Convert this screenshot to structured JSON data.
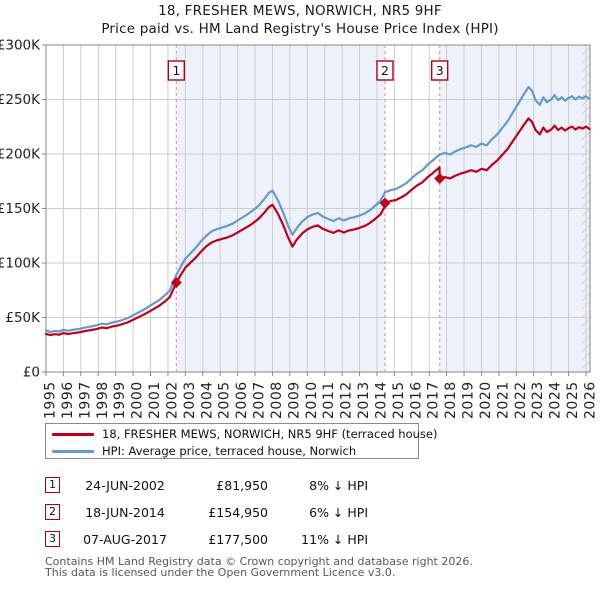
{
  "title": {
    "line1": "18, FRESHER MEWS, NORWICH, NR5 9HF",
    "line2": "Price paid vs. HM Land Registry's House Price Index (HPI)"
  },
  "colors": {
    "property_line": "#c00018",
    "hpi_line": "#6699cc",
    "sale_dash": "#f09898",
    "shade": "#edf2fa",
    "grid": "#cccccc",
    "plot_border": "#999999",
    "tick": "#888888",
    "axis_text": "#222222",
    "marker": "#c00018",
    "numbox_border": "#b00010",
    "hatch": "#b9bfca"
  },
  "chart_data": {
    "type": "line",
    "title": "Price paid vs. HM Land Registry's House Price Index (HPI)",
    "x_ticks": [
      1995,
      1996,
      1997,
      1998,
      1999,
      2000,
      2001,
      2002,
      2003,
      2004,
      2005,
      2006,
      2007,
      2008,
      2009,
      2010,
      2011,
      2012,
      2013,
      2014,
      2015,
      2016,
      2017,
      2018,
      2019,
      2020,
      2021,
      2022,
      2023,
      2024,
      2025,
      2026
    ],
    "y_ticks": [
      0,
      50,
      100,
      150,
      200,
      250,
      300
    ],
    "y_tick_labels": [
      "£0",
      "£50K",
      "£100K",
      "£150K",
      "£200K",
      "£250K",
      "£300K"
    ],
    "x_range": [
      1995,
      2026.23
    ],
    "y_range_k": [
      0,
      300
    ],
    "shaded_periods": [
      [
        2002.48,
        2014.46
      ],
      [
        2017.6,
        2026.23
      ]
    ],
    "future_hatch_start": 2025.77,
    "sales_markers": [
      {
        "label": "1",
        "year": 2002.48,
        "value_k": 81.95
      },
      {
        "label": "2",
        "year": 2014.46,
        "value_k": 154.95
      },
      {
        "label": "3",
        "year": 2017.6,
        "value_k": 177.5
      }
    ],
    "series": [
      {
        "name": "HPI: Average price, terraced house, Norwich",
        "color_key": "hpi_line",
        "points": [
          [
            1995.0,
            38
          ],
          [
            1995.25,
            36.8
          ],
          [
            1995.5,
            37.6
          ],
          [
            1995.75,
            37.2
          ],
          [
            1996.0,
            38.8
          ],
          [
            1996.25,
            37.8
          ],
          [
            1996.5,
            38.6
          ],
          [
            1996.75,
            39.2
          ],
          [
            1997.0,
            39.8
          ],
          [
            1997.3,
            41
          ],
          [
            1997.6,
            41.8
          ],
          [
            1997.9,
            42.8
          ],
          [
            1998.2,
            44.3
          ],
          [
            1998.5,
            43.8
          ],
          [
            1998.8,
            45.3
          ],
          [
            1999.1,
            46.3
          ],
          [
            1999.4,
            47.8
          ],
          [
            1999.7,
            49.5
          ],
          [
            2000.0,
            52
          ],
          [
            2000.3,
            54.5
          ],
          [
            2000.6,
            57
          ],
          [
            2000.9,
            60
          ],
          [
            2001.2,
            63
          ],
          [
            2001.5,
            66
          ],
          [
            2001.8,
            70
          ],
          [
            2002.1,
            74.5
          ],
          [
            2002.48,
            89
          ],
          [
            2002.75,
            97
          ],
          [
            2003.0,
            104
          ],
          [
            2003.3,
            109
          ],
          [
            2003.6,
            114
          ],
          [
            2003.9,
            120
          ],
          [
            2004.2,
            125
          ],
          [
            2004.5,
            129
          ],
          [
            2004.8,
            131
          ],
          [
            2005.1,
            132.5
          ],
          [
            2005.4,
            134
          ],
          [
            2005.7,
            136
          ],
          [
            2006.0,
            139
          ],
          [
            2006.3,
            142
          ],
          [
            2006.6,
            145
          ],
          [
            2006.9,
            148.5
          ],
          [
            2007.2,
            152.5
          ],
          [
            2007.5,
            158
          ],
          [
            2007.8,
            164.5
          ],
          [
            2008.0,
            166.5
          ],
          [
            2008.3,
            158
          ],
          [
            2008.6,
            147
          ],
          [
            2008.9,
            134
          ],
          [
            2009.15,
            126
          ],
          [
            2009.4,
            132
          ],
          [
            2009.7,
            138
          ],
          [
            2010.0,
            142
          ],
          [
            2010.3,
            144.5
          ],
          [
            2010.6,
            146
          ],
          [
            2010.9,
            142.5
          ],
          [
            2011.2,
            140.5
          ],
          [
            2011.5,
            138.5
          ],
          [
            2011.8,
            141
          ],
          [
            2012.1,
            139
          ],
          [
            2012.4,
            141
          ],
          [
            2012.7,
            142
          ],
          [
            2013.0,
            143.5
          ],
          [
            2013.3,
            145.5
          ],
          [
            2013.6,
            148.5
          ],
          [
            2013.9,
            152.5
          ],
          [
            2014.2,
            157
          ],
          [
            2014.46,
            164.8
          ],
          [
            2014.8,
            167
          ],
          [
            2015.1,
            168
          ],
          [
            2015.4,
            170.5
          ],
          [
            2015.7,
            173.5
          ],
          [
            2016.0,
            178
          ],
          [
            2016.3,
            182
          ],
          [
            2016.6,
            185
          ],
          [
            2016.9,
            190
          ],
          [
            2017.2,
            194
          ],
          [
            2017.6,
            199.5
          ],
          [
            2017.9,
            201
          ],
          [
            2018.2,
            199.5
          ],
          [
            2018.5,
            202.5
          ],
          [
            2018.8,
            204.5
          ],
          [
            2019.1,
            206
          ],
          [
            2019.4,
            208
          ],
          [
            2019.7,
            206.5
          ],
          [
            2020.0,
            209.5
          ],
          [
            2020.3,
            208
          ],
          [
            2020.6,
            213.5
          ],
          [
            2020.9,
            218
          ],
          [
            2021.2,
            224
          ],
          [
            2021.5,
            230
          ],
          [
            2021.8,
            238
          ],
          [
            2022.1,
            246
          ],
          [
            2022.4,
            254
          ],
          [
            2022.7,
            261.5
          ],
          [
            2022.9,
            258
          ],
          [
            2023.1,
            249.5
          ],
          [
            2023.35,
            245
          ],
          [
            2023.55,
            252
          ],
          [
            2023.75,
            247.5
          ],
          [
            2024.0,
            250
          ],
          [
            2024.2,
            254
          ],
          [
            2024.4,
            249.5
          ],
          [
            2024.6,
            252
          ],
          [
            2024.8,
            249
          ],
          [
            2025.0,
            251.5
          ],
          [
            2025.2,
            253
          ],
          [
            2025.4,
            250
          ],
          [
            2025.6,
            252.5
          ],
          [
            2025.8,
            251
          ],
          [
            2026.0,
            253
          ],
          [
            2026.2,
            250.5
          ]
        ]
      },
      {
        "name": "18, FRESHER MEWS, NORWICH, NR5 9HF (terraced house)",
        "color_key": "property_line",
        "points": [
          [
            1995.0,
            35
          ],
          [
            1995.25,
            33.9
          ],
          [
            1995.5,
            34.7
          ],
          [
            1995.75,
            34.2
          ],
          [
            1996.0,
            35.8
          ],
          [
            1996.25,
            34.8
          ],
          [
            1996.5,
            35.5
          ],
          [
            1996.75,
            36.1
          ],
          [
            1997.0,
            36.7
          ],
          [
            1997.3,
            37.8
          ],
          [
            1997.6,
            38.5
          ],
          [
            1997.9,
            39.4
          ],
          [
            1998.2,
            40.8
          ],
          [
            1998.5,
            40.3
          ],
          [
            1998.8,
            41.7
          ],
          [
            1999.1,
            42.6
          ],
          [
            1999.4,
            44
          ],
          [
            1999.7,
            45.6
          ],
          [
            2000.0,
            47.9
          ],
          [
            2000.3,
            50.2
          ],
          [
            2000.6,
            52.5
          ],
          [
            2000.9,
            55.2
          ],
          [
            2001.2,
            58
          ],
          [
            2001.5,
            60.8
          ],
          [
            2001.8,
            64.4
          ],
          [
            2002.1,
            68.6
          ],
          [
            2002.48,
            81.95
          ],
          [
            2002.75,
            89.4
          ],
          [
            2003.0,
            95.8
          ],
          [
            2003.3,
            100.4
          ],
          [
            2003.6,
            105
          ],
          [
            2003.9,
            110.5
          ],
          [
            2004.2,
            115.2
          ],
          [
            2004.5,
            118.8
          ],
          [
            2004.8,
            120.7
          ],
          [
            2005.1,
            122.1
          ],
          [
            2005.4,
            123.4
          ],
          [
            2005.7,
            125.3
          ],
          [
            2006.0,
            128
          ],
          [
            2006.3,
            130.8
          ],
          [
            2006.6,
            133.6
          ],
          [
            2006.9,
            136.8
          ],
          [
            2007.2,
            140.5
          ],
          [
            2007.5,
            145.6
          ],
          [
            2007.8,
            151.5
          ],
          [
            2008.0,
            153.4
          ],
          [
            2008.3,
            145.6
          ],
          [
            2008.6,
            135.4
          ],
          [
            2008.9,
            123.4
          ],
          [
            2009.15,
            115
          ],
          [
            2009.4,
            121.6
          ],
          [
            2009.7,
            127.1
          ],
          [
            2010.0,
            130.8
          ],
          [
            2010.3,
            133.1
          ],
          [
            2010.6,
            134.5
          ],
          [
            2010.9,
            131.3
          ],
          [
            2011.2,
            129.4
          ],
          [
            2011.5,
            127.6
          ],
          [
            2011.8,
            129.9
          ],
          [
            2012.1,
            128
          ],
          [
            2012.4,
            129.9
          ],
          [
            2012.7,
            130.8
          ],
          [
            2013.0,
            132.2
          ],
          [
            2013.3,
            134
          ],
          [
            2013.6,
            136.8
          ],
          [
            2013.9,
            140.5
          ],
          [
            2014.2,
            144.6
          ],
          [
            2014.45,
            151.8
          ],
          [
            2014.46,
            154.95
          ],
          [
            2014.8,
            157
          ],
          [
            2015.1,
            157.9
          ],
          [
            2015.4,
            160.3
          ],
          [
            2015.7,
            163.1
          ],
          [
            2016.0,
            167.3
          ],
          [
            2016.3,
            171.1
          ],
          [
            2016.6,
            173.9
          ],
          [
            2016.9,
            178.6
          ],
          [
            2017.2,
            182.4
          ],
          [
            2017.59,
            187.6
          ],
          [
            2017.6,
            177.5
          ],
          [
            2017.9,
            178.8
          ],
          [
            2018.2,
            177.5
          ],
          [
            2018.5,
            180.2
          ],
          [
            2018.8,
            182
          ],
          [
            2019.1,
            183.3
          ],
          [
            2019.4,
            185.1
          ],
          [
            2019.7,
            183.7
          ],
          [
            2020.0,
            186.4
          ],
          [
            2020.3,
            185.1
          ],
          [
            2020.6,
            190
          ],
          [
            2020.9,
            194
          ],
          [
            2021.2,
            199.3
          ],
          [
            2021.5,
            204.6
          ],
          [
            2021.8,
            211.7
          ],
          [
            2022.1,
            218.9
          ],
          [
            2022.4,
            226
          ],
          [
            2022.7,
            232.7
          ],
          [
            2022.9,
            229.5
          ],
          [
            2023.1,
            222
          ],
          [
            2023.35,
            218
          ],
          [
            2023.55,
            224.2
          ],
          [
            2023.75,
            220.2
          ],
          [
            2024.0,
            222.4
          ],
          [
            2024.2,
            226
          ],
          [
            2024.4,
            222
          ],
          [
            2024.6,
            224.2
          ],
          [
            2024.8,
            221.5
          ],
          [
            2025.0,
            223.8
          ],
          [
            2025.2,
            225.1
          ],
          [
            2025.4,
            222.4
          ],
          [
            2025.6,
            224.7
          ],
          [
            2025.8,
            223.3
          ],
          [
            2026.0,
            225.1
          ],
          [
            2026.2,
            222.9
          ]
        ]
      }
    ]
  },
  "legend": {
    "entries": [
      {
        "label": "18, FRESHER MEWS, NORWICH, NR5 9HF (terraced house)",
        "color_key": "property_line"
      },
      {
        "label": "HPI: Average price, terraced house, Norwich",
        "color_key": "hpi_line"
      }
    ]
  },
  "transactions": [
    {
      "num": "1",
      "date": "24-JUN-2002",
      "price": "£81,950",
      "hpi": "8% ↓ HPI"
    },
    {
      "num": "2",
      "date": "18-JUN-2014",
      "price": "£154,950",
      "hpi": "6% ↓ HPI"
    },
    {
      "num": "3",
      "date": "07-AUG-2017",
      "price": "£177,500",
      "hpi": "11% ↓ HPI"
    }
  ],
  "footer": {
    "line1": "Contains HM Land Registry data © Crown copyright and database right 2026.",
    "line2": "This data is licensed under the Open Government Licence v3.0."
  }
}
